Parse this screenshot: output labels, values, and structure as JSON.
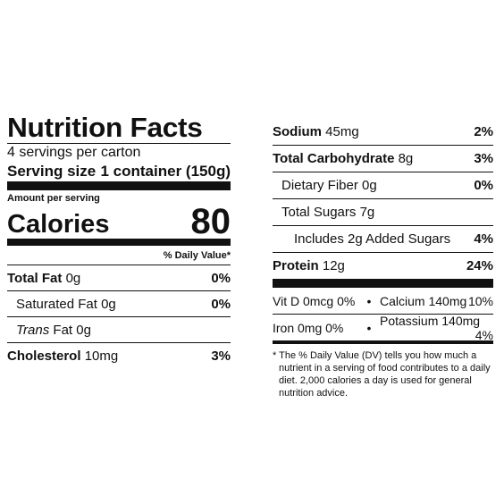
{
  "label": {
    "title": "Nutrition Facts",
    "servings_per_container": "4 servings per carton",
    "serving_size_label": "Serving size",
    "serving_size_value": "1 container (150g)",
    "amount_per_serving": "Amount per serving",
    "calories_label": "Calories",
    "calories_value": "80",
    "daily_value_header": "% Daily Value*",
    "left_nutrients": [
      {
        "name": "Total Fat",
        "amount": "0g",
        "dv": "0%"
      },
      {
        "name": "Saturated Fat",
        "amount": "0g",
        "dv": "0%"
      },
      {
        "name_italic": "Trans",
        "name": "Fat",
        "amount": "0g",
        "dv": ""
      },
      {
        "name": "Cholesterol",
        "amount": "10mg",
        "dv": "3%"
      }
    ],
    "right_nutrients": [
      {
        "name": "Sodium",
        "amount": "45mg",
        "dv": "2%"
      },
      {
        "name": "Total Carbohydrate",
        "amount": "8g",
        "dv": "3%"
      },
      {
        "name": "Dietary Fiber",
        "amount": "0g",
        "dv": "0%"
      },
      {
        "name": "Total Sugars",
        "amount": "7g",
        "dv": ""
      },
      {
        "name": "Includes 2g Added Sugars",
        "amount": "",
        "dv": "4%"
      },
      {
        "name": "Protein",
        "amount": "12g",
        "dv": "24%"
      }
    ],
    "vitamins": [
      {
        "a": "Vit D 0mcg 0%",
        "b_name": "Calcium 140mg",
        "b_dv": "10%"
      },
      {
        "a": "Iron 0mg 0%",
        "b_name": "Potassium 140mg",
        "b_dv": "4%"
      }
    ],
    "bullet": "•",
    "footnote": "* The % Daily Value (DV) tells you how much a nutrient in a serving of food contributes to a daily diet. 2,000 calories a day is used for general nutrition advice."
  }
}
